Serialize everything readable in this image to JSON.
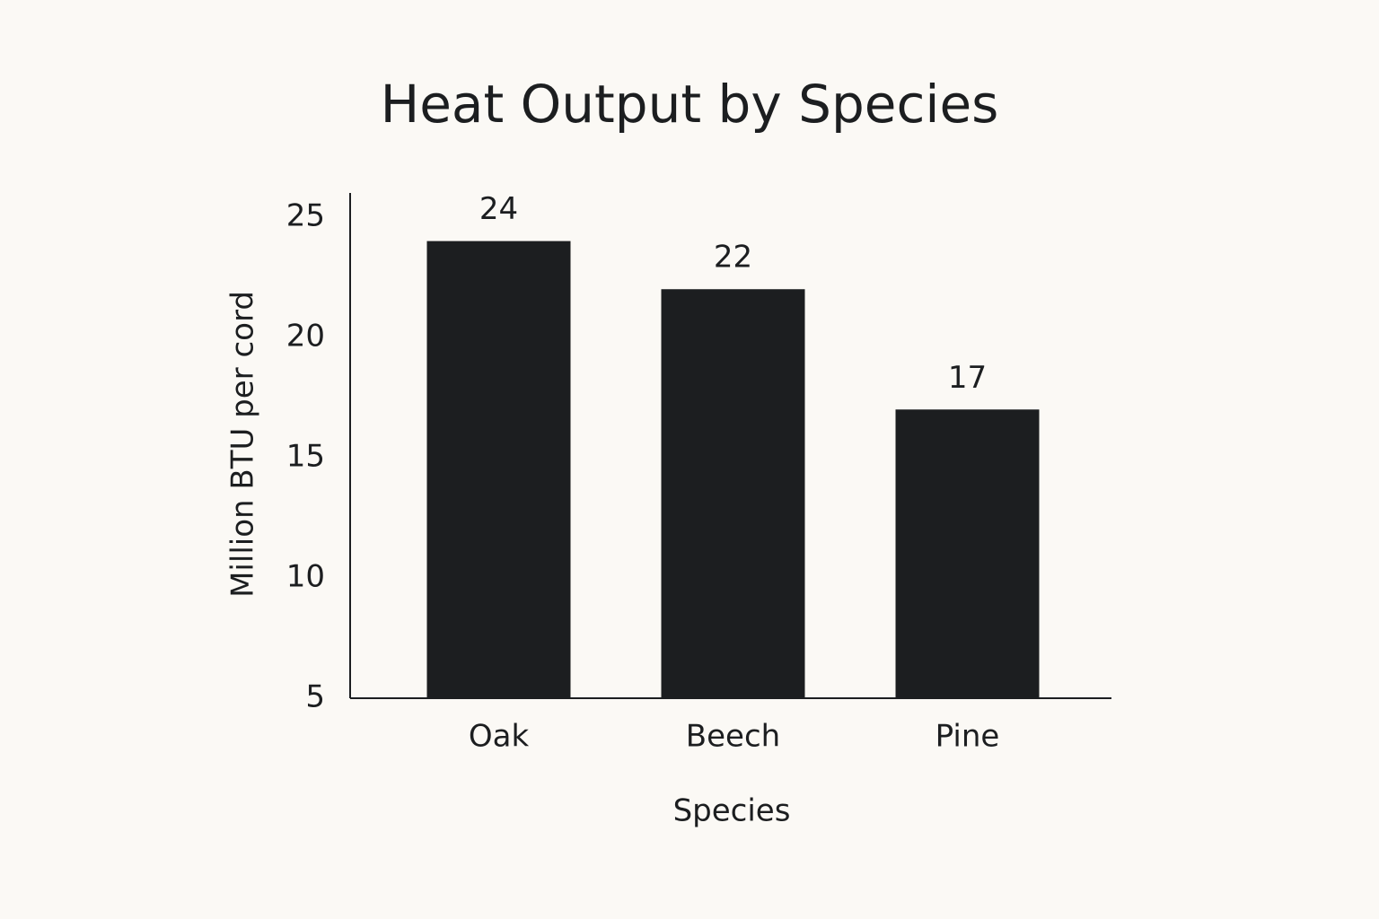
{
  "chart_data": {
    "type": "bar",
    "title": "Heat Output by Species",
    "x_label": "Species",
    "y_label": "Million BTU per cord",
    "categories": [
      "Oak",
      "Beech",
      "Pine"
    ],
    "values": [
      24,
      22,
      17
    ],
    "color": "#1c1e20",
    "ylim": [
      5,
      26
    ],
    "yticks": [
      5,
      10,
      15,
      20,
      25
    ],
    "grid": false
  }
}
